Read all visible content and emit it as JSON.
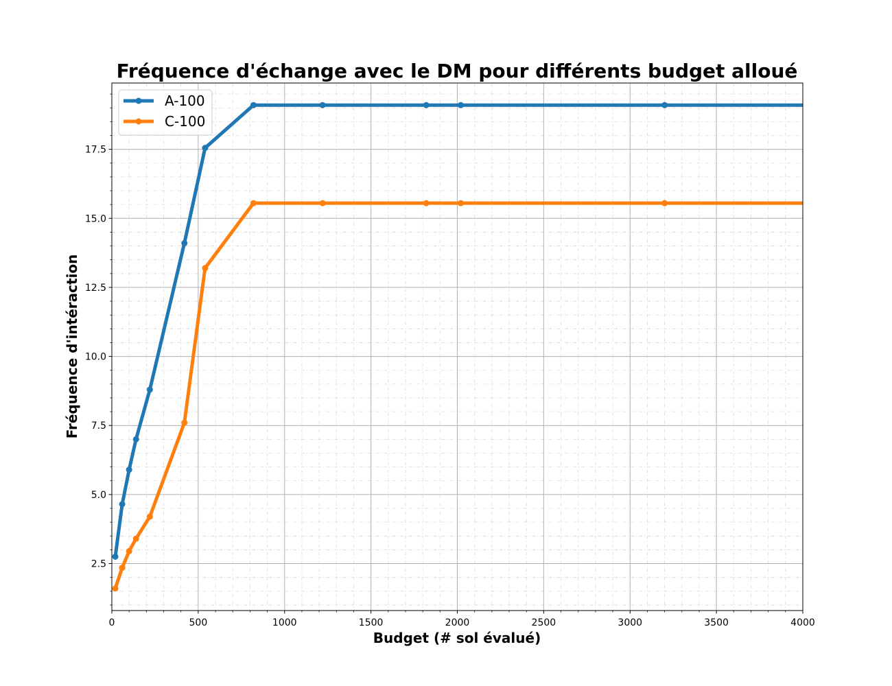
{
  "chart_data": {
    "type": "line",
    "title": "Fréquence d'échange avec le DM pour différents budget alloué",
    "xlabel": "Budget (# sol évalué)",
    "ylabel": "Fréquence d'intéraction",
    "xlim": [
      0,
      4000
    ],
    "ylim": [
      0.8,
      19.9
    ],
    "xticks": [
      0,
      500,
      1000,
      1500,
      2000,
      2500,
      3000,
      3500,
      4000
    ],
    "xtick_labels": [
      "0",
      "500",
      "1000",
      "1500",
      "2000",
      "2500",
      "3000",
      "3500",
      "4000"
    ],
    "yticks": [
      2.5,
      5.0,
      7.5,
      10.0,
      12.5,
      15.0,
      17.5
    ],
    "ytick_labels": [
      "2.5",
      "5.0",
      "7.5",
      "10.0",
      "12.5",
      "15.0",
      "17.5"
    ],
    "grid": true,
    "legend_position": "top-left",
    "series": [
      {
        "name": "A-100",
        "color": "#1f77b4",
        "x": [
          20,
          60,
          100,
          140,
          220,
          420,
          540,
          820,
          1220,
          1820,
          2020,
          3200,
          4000
        ],
        "y": [
          2.75,
          4.65,
          5.9,
          7.0,
          8.8,
          14.1,
          17.55,
          19.1,
          19.1,
          19.1,
          19.1,
          19.1,
          19.1
        ],
        "markers": [
          true,
          true,
          true,
          true,
          true,
          true,
          true,
          true,
          true,
          true,
          true,
          true,
          false
        ]
      },
      {
        "name": "C-100",
        "color": "#ff7f0e",
        "x": [
          20,
          60,
          100,
          140,
          220,
          420,
          540,
          820,
          1220,
          1820,
          2020,
          3200,
          4000
        ],
        "y": [
          1.6,
          2.35,
          2.95,
          3.4,
          4.2,
          7.6,
          13.2,
          15.55,
          15.55,
          15.55,
          15.55,
          15.55,
          15.55
        ],
        "markers": [
          true,
          true,
          true,
          true,
          true,
          true,
          true,
          true,
          true,
          true,
          true,
          true,
          false
        ]
      }
    ]
  }
}
